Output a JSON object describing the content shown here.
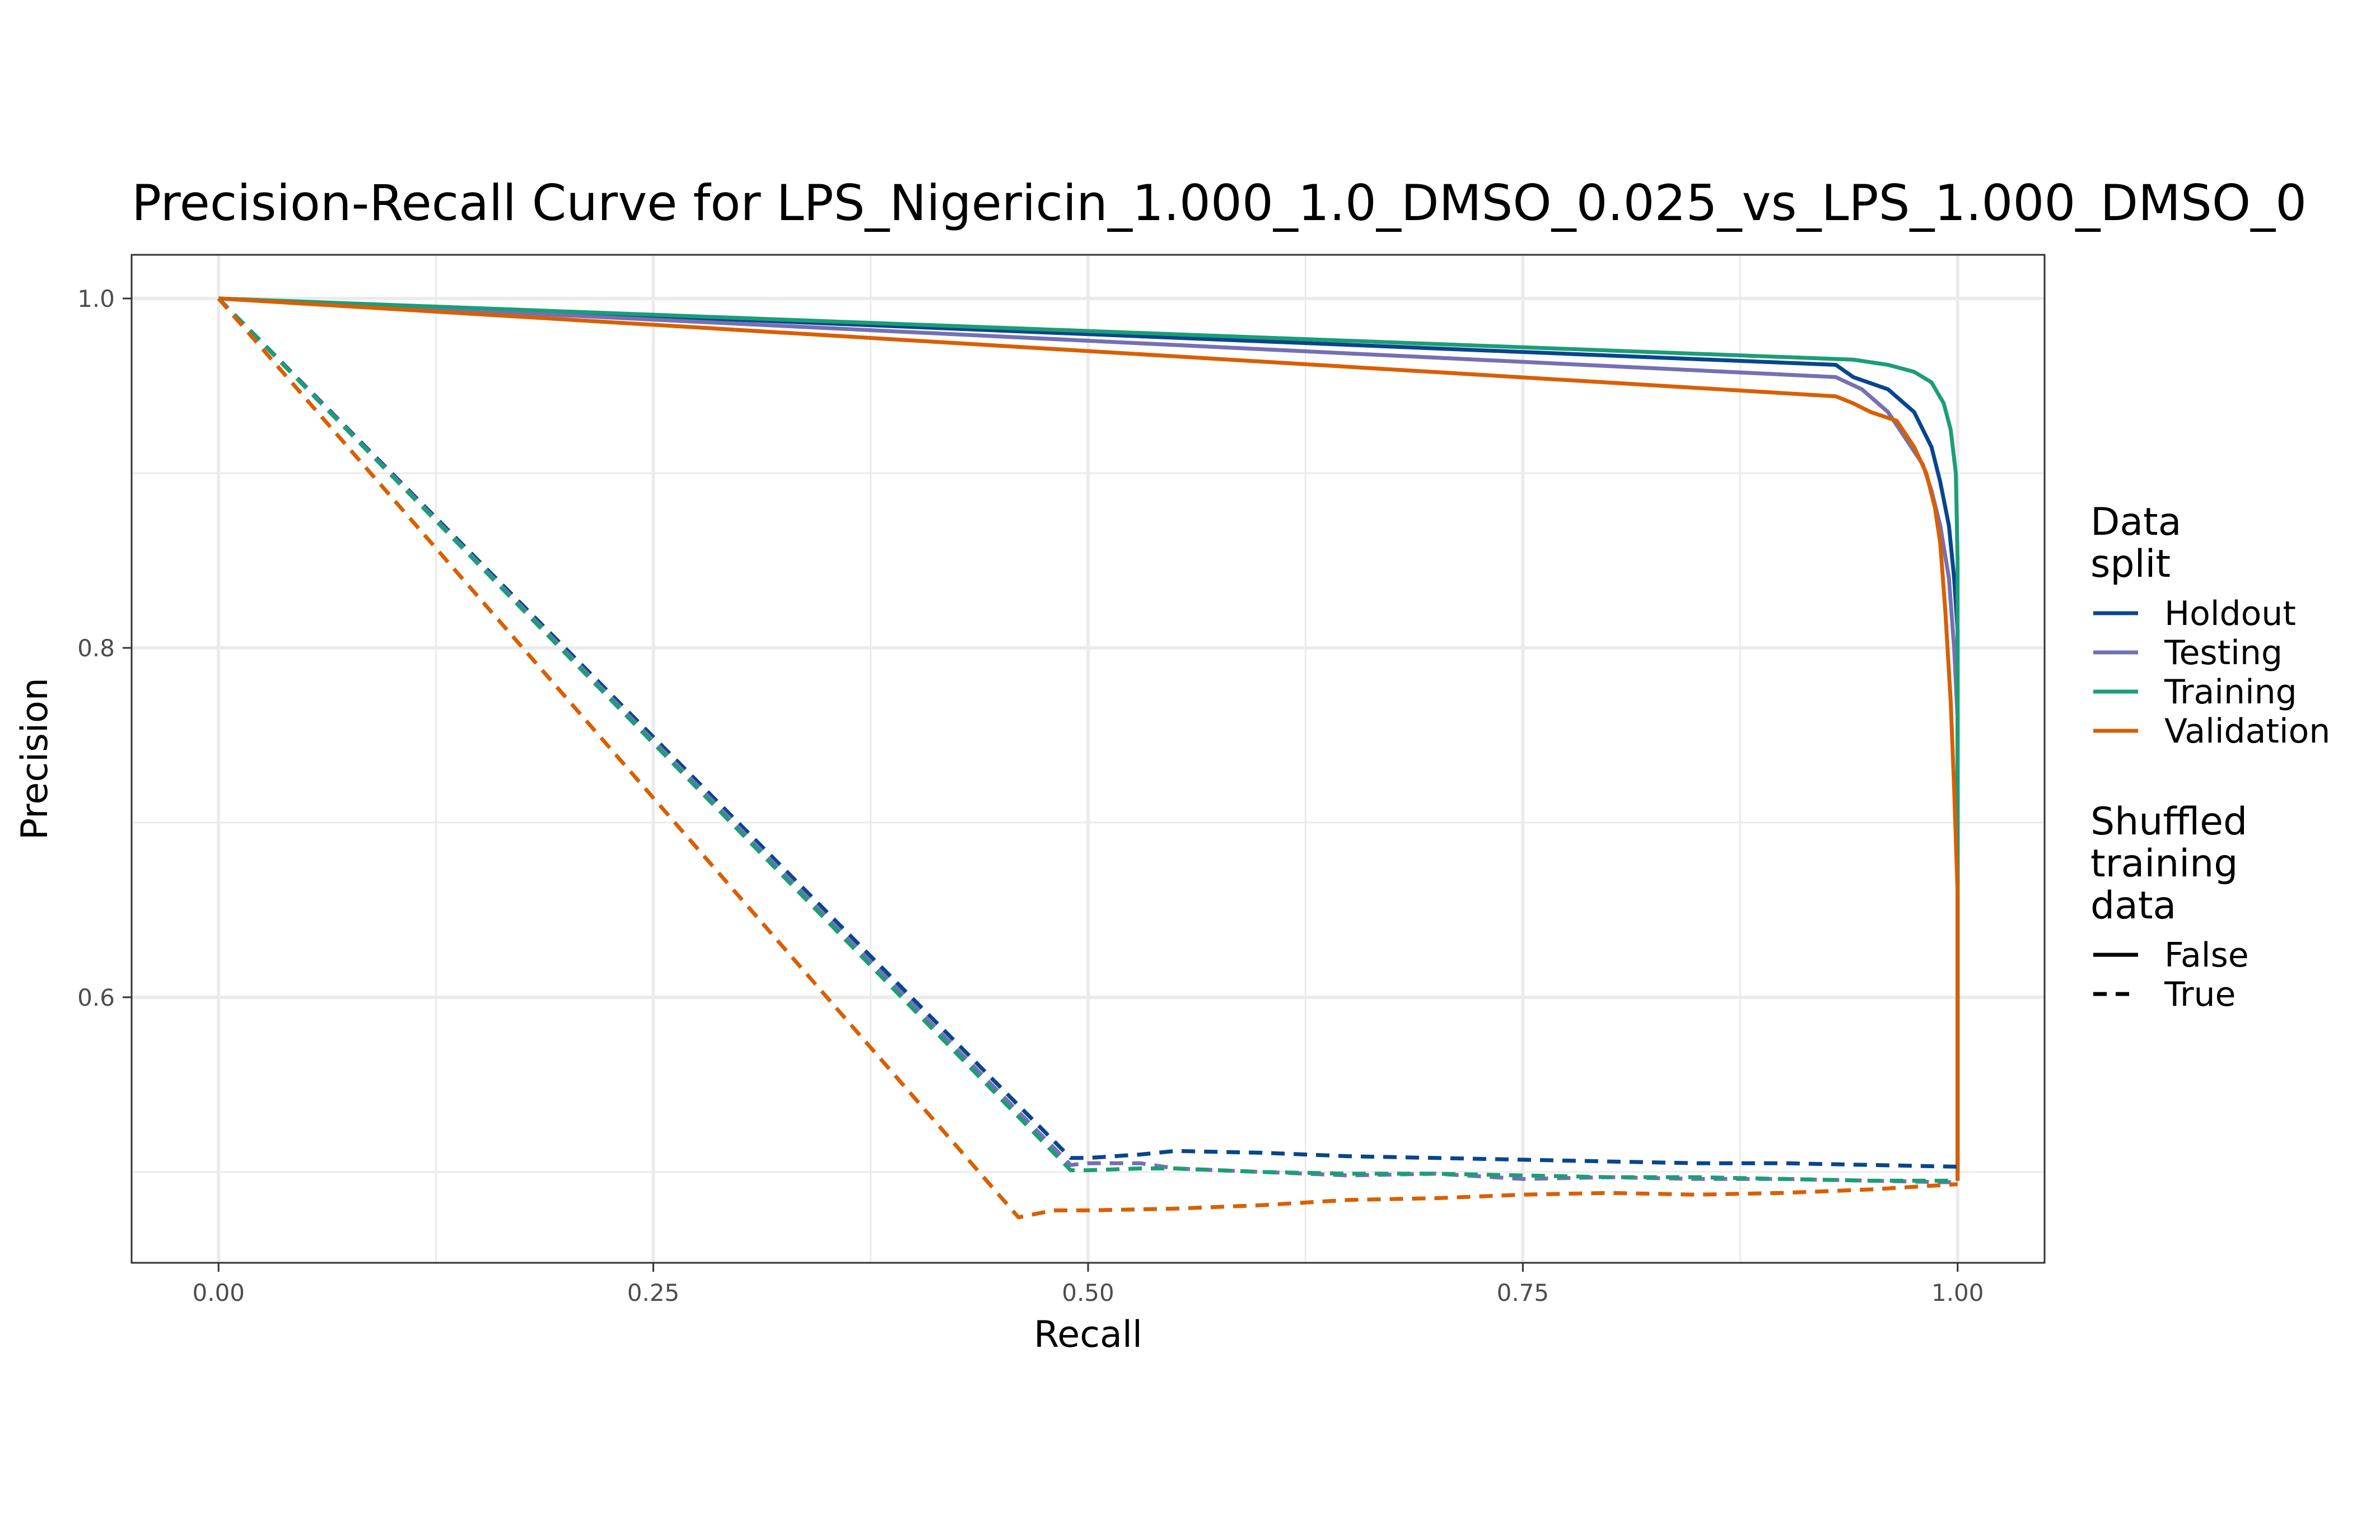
{
  "chart_data": {
    "type": "line",
    "title": "Precision-Recall Curve for LPS_Nigericin_1.000_1.0_DMSO_0.025_vs_LPS_1.000_DMSO_0",
    "xlabel": "Recall",
    "ylabel": "Precision",
    "xlim": [
      -0.05,
      1.05
    ],
    "ylim": [
      0.448,
      1.025
    ],
    "x_ticks": [
      0.0,
      0.25,
      0.5,
      0.75,
      1.0
    ],
    "x_tick_labels": [
      "0.00",
      "0.25",
      "0.50",
      "0.75",
      "1.00"
    ],
    "y_ticks": [
      0.6,
      0.8,
      1.0
    ],
    "y_tick_labels": [
      "0.6",
      "0.8",
      "1.0"
    ],
    "grid": true,
    "legend_position": "right",
    "legend": {
      "color_title_lines": [
        "Data",
        "split"
      ],
      "color_entries": [
        {
          "label": "Holdout",
          "color": "#08468c"
        },
        {
          "label": "Testing",
          "color": "#7570b3"
        },
        {
          "label": "Training",
          "color": "#1b9e77"
        },
        {
          "label": "Validation",
          "color": "#d95f02"
        }
      ],
      "linetype_title_lines": [
        "Shuffled",
        "training",
        "data"
      ],
      "linetype_entries": [
        {
          "label": "False",
          "dash": "solid"
        },
        {
          "label": "True",
          "dash": "dashed"
        }
      ]
    },
    "series": [
      {
        "name": "Holdout",
        "shuffled": "False",
        "color": "#08468c",
        "dash": "solid",
        "x": [
          0.0,
          0.93,
          0.94,
          0.96,
          0.975,
          0.985,
          0.99,
          0.995,
          0.998,
          1.0,
          1.0
        ],
        "y": [
          1.0,
          0.962,
          0.955,
          0.948,
          0.935,
          0.915,
          0.895,
          0.87,
          0.84,
          0.81,
          0.495
        ]
      },
      {
        "name": "Testing",
        "shuffled": "False",
        "color": "#7570b3",
        "dash": "solid",
        "x": [
          0.0,
          0.93,
          0.945,
          0.96,
          0.97,
          0.98,
          0.985,
          0.99,
          0.995,
          0.998,
          1.0,
          1.0
        ],
        "y": [
          1.0,
          0.955,
          0.948,
          0.935,
          0.92,
          0.905,
          0.89,
          0.87,
          0.84,
          0.8,
          0.76,
          0.5
        ]
      },
      {
        "name": "Training",
        "shuffled": "False",
        "color": "#1b9e77",
        "dash": "solid",
        "x": [
          0.0,
          0.94,
          0.96,
          0.975,
          0.985,
          0.992,
          0.996,
          0.999,
          1.0,
          1.0
        ],
        "y": [
          1.0,
          0.965,
          0.962,
          0.958,
          0.952,
          0.94,
          0.925,
          0.9,
          0.85,
          0.5
        ]
      },
      {
        "name": "Validation",
        "shuffled": "False",
        "color": "#d95f02",
        "dash": "solid",
        "x": [
          0.0,
          0.93,
          0.94,
          0.95,
          0.965,
          0.975,
          0.982,
          0.987,
          0.99,
          0.993,
          0.996,
          0.998,
          1.0,
          1.0
        ],
        "y": [
          1.0,
          0.944,
          0.94,
          0.935,
          0.93,
          0.915,
          0.9,
          0.88,
          0.86,
          0.82,
          0.77,
          0.72,
          0.66,
          0.495
        ]
      },
      {
        "name": "Holdout",
        "shuffled": "True",
        "color": "#08468c",
        "dash": "dashed",
        "x": [
          0.0,
          0.49,
          0.5,
          0.53,
          0.55,
          0.6,
          0.65,
          0.7,
          0.75,
          0.8,
          0.85,
          0.9,
          0.95,
          1.0
        ],
        "y": [
          1.0,
          0.508,
          0.508,
          0.51,
          0.512,
          0.511,
          0.509,
          0.508,
          0.507,
          0.506,
          0.505,
          0.505,
          0.504,
          0.503
        ]
      },
      {
        "name": "Testing",
        "shuffled": "True",
        "color": "#7570b3",
        "dash": "dashed",
        "x": [
          0.0,
          0.49,
          0.5,
          0.53,
          0.55,
          0.6,
          0.65,
          0.7,
          0.75,
          0.8,
          0.85,
          0.9,
          0.95,
          1.0
        ],
        "y": [
          1.0,
          0.504,
          0.505,
          0.505,
          0.502,
          0.5,
          0.498,
          0.499,
          0.496,
          0.497,
          0.496,
          0.496,
          0.495,
          0.494
        ]
      },
      {
        "name": "Training",
        "shuffled": "True",
        "color": "#1b9e77",
        "dash": "dashed",
        "x": [
          0.0,
          0.49,
          0.5,
          0.53,
          0.55,
          0.6,
          0.65,
          0.7,
          0.75,
          0.8,
          0.85,
          0.9,
          0.95,
          1.0
        ],
        "y": [
          1.0,
          0.501,
          0.501,
          0.502,
          0.502,
          0.5,
          0.499,
          0.499,
          0.498,
          0.497,
          0.497,
          0.496,
          0.495,
          0.495
        ]
      },
      {
        "name": "Validation",
        "shuffled": "True",
        "color": "#d95f02",
        "dash": "dashed",
        "x": [
          0.0,
          0.46,
          0.48,
          0.5,
          0.55,
          0.6,
          0.65,
          0.7,
          0.75,
          0.8,
          0.85,
          0.9,
          0.95,
          1.0
        ],
        "y": [
          1.0,
          0.474,
          0.478,
          0.478,
          0.479,
          0.481,
          0.484,
          0.485,
          0.487,
          0.488,
          0.487,
          0.488,
          0.49,
          0.493
        ]
      }
    ]
  }
}
